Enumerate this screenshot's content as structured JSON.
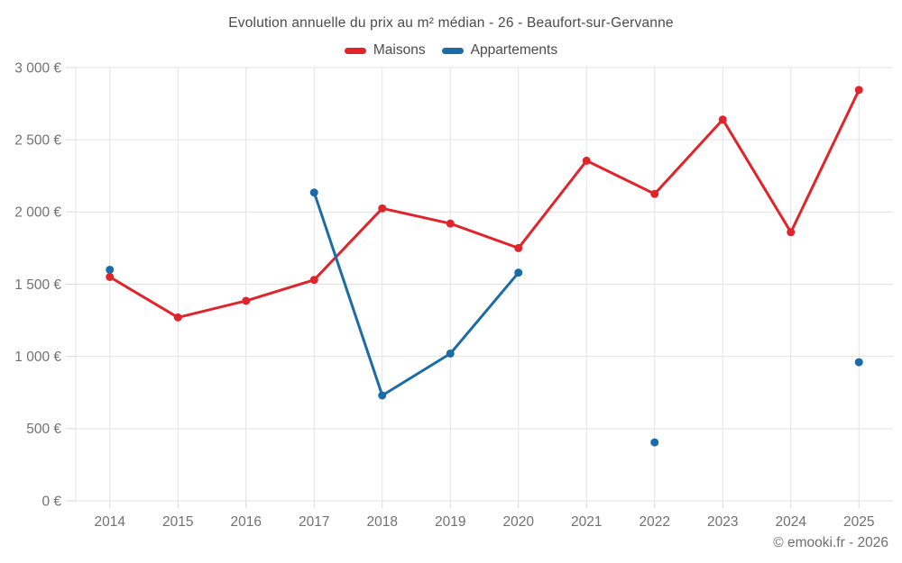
{
  "footer": {
    "attribution": "© emooki.fr - 2026"
  },
  "colors": {
    "maisons": "#e0242b",
    "appartements": "#1b6ca6",
    "grid": "#e3e3e3",
    "tick": "#d9d9d9",
    "axis_text": "#717171",
    "title_text": "#4b4b4b"
  },
  "chart_data": {
    "type": "line",
    "title": "Evolution annuelle du prix au m² médian - 26 - Beaufort-sur-Gervanne",
    "categories": [
      "2014",
      "2015",
      "2016",
      "2017",
      "2018",
      "2019",
      "2020",
      "2021",
      "2022",
      "2023",
      "2024",
      "2025"
    ],
    "series": [
      {
        "name": "Maisons",
        "color": "#e0242b",
        "values": [
          1550,
          1270,
          1385,
          1530,
          2025,
          1920,
          1750,
          2355,
          2125,
          2640,
          1860,
          2845
        ]
      },
      {
        "name": "Appartements",
        "color": "#1b6ca6",
        "values": [
          1600,
          null,
          null,
          2135,
          730,
          1020,
          1580,
          null,
          405,
          null,
          null,
          960
        ]
      }
    ],
    "xlabel": "",
    "ylabel": "",
    "ylim": [
      0,
      3000
    ],
    "ytick_step": 500,
    "ytick_labels": [
      "0 €",
      "500 €",
      "1 000 €",
      "1 500 €",
      "2 000 €",
      "2 500 €",
      "3 000 €"
    ],
    "grid": true,
    "legend_position": "top",
    "gaps_not_spanned": true
  }
}
